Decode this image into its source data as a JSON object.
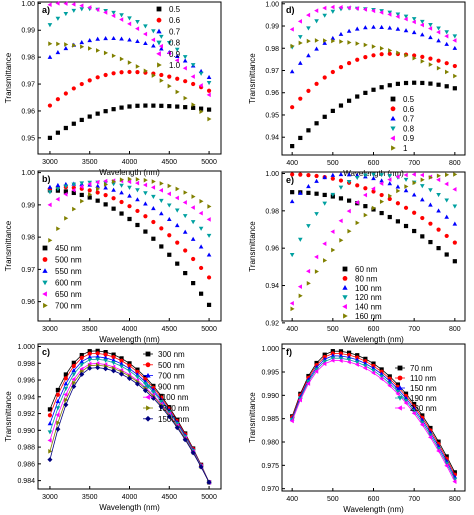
{
  "figure": {
    "panel_count": 6
  },
  "chart_data": [
    {
      "panel": "a)",
      "type": "scatter",
      "xlabel": "Wavelength (nm)",
      "ylabel": "Transmittance",
      "xlim": [
        2850,
        5150
      ],
      "ylim": [
        0.944,
        1.0005
      ],
      "xticks": [
        3000,
        3500,
        4000,
        4500,
        5000
      ],
      "yticks": [
        0.95,
        0.96,
        0.97,
        0.98,
        0.99,
        1.0
      ],
      "ytick_labels": [
        "0.95",
        "0.96",
        "0.97",
        "0.98",
        "0.99",
        "1.00"
      ],
      "legend": "right",
      "x": [
        3000,
        3100,
        3200,
        3300,
        3400,
        3500,
        3600,
        3700,
        3800,
        3900,
        4000,
        4100,
        4200,
        4300,
        4400,
        4500,
        4600,
        4700,
        4800,
        4900,
        5000
      ],
      "series": [
        {
          "name": "0.5",
          "color": "#000000",
          "marker": "square",
          "peak_x": 4200,
          "peak_y": 0.962,
          "start_y": 0.95,
          "end_y": 0.9605
        },
        {
          "name": "0.6",
          "color": "#ff0000",
          "marker": "circle",
          "peak_x": 4000,
          "peak_y": 0.9745,
          "start_y": 0.962,
          "end_y": 0.9675
        },
        {
          "name": "0.7",
          "color": "#0000ff",
          "marker": "triangle-up",
          "peak_x": 3750,
          "peak_y": 0.987,
          "start_y": 0.98,
          "end_y": 0.9725
        },
        {
          "name": "0.8",
          "color": "#00a0a0",
          "marker": "triangle-down",
          "peak_x": 3450,
          "peak_y": 0.998,
          "start_y": 0.992,
          "end_y": 0.9705
        },
        {
          "name": "0.9",
          "color": "#ff00ff",
          "marker": "triangle-left",
          "peak_x": 3100,
          "peak_y": 1.0,
          "start_y": 0.9995,
          "end_y": 0.966
        },
        {
          "name": "1.0",
          "color": "#808000",
          "marker": "triangle-right",
          "peak_x": 3000,
          "peak_y": 0.985,
          "start_y": 0.985,
          "end_y": 0.957
        }
      ]
    },
    {
      "panel": "b)",
      "type": "scatter",
      "xlabel": "Wavelength (nm)",
      "ylabel": "Transmittance",
      "xlim": [
        2850,
        5150
      ],
      "ylim": [
        0.954,
        1.0005
      ],
      "xticks": [
        3000,
        3500,
        4000,
        4500,
        5000
      ],
      "yticks": [
        0.96,
        0.97,
        0.98,
        0.99,
        1.0
      ],
      "ytick_labels": [
        "0.96",
        "0.97",
        "0.98",
        "0.99",
        "1.00"
      ],
      "legend": "lower-left",
      "x": [
        3000,
        3100,
        3200,
        3300,
        3400,
        3500,
        3600,
        3700,
        3800,
        3900,
        4000,
        4100,
        4200,
        4300,
        4400,
        4500,
        4600,
        4700,
        4800,
        4900,
        5000
      ],
      "series": [
        {
          "name": "450 nm",
          "color": "#000000",
          "marker": "square",
          "peak_x": 3000,
          "peak_y": 0.9945,
          "start_y": 0.9945,
          "end_y": 0.959
        },
        {
          "name": "500 nm",
          "color": "#ff0000",
          "marker": "circle",
          "peak_x": 3150,
          "peak_y": 0.9955,
          "start_y": 0.995,
          "end_y": 0.9675
        },
        {
          "name": "550 nm",
          "color": "#0000ff",
          "marker": "triangle-up",
          "peak_x": 3300,
          "peak_y": 0.9965,
          "start_y": 0.9955,
          "end_y": 0.9745
        },
        {
          "name": "600 nm",
          "color": "#00a0a0",
          "marker": "triangle-down",
          "peak_x": 3550,
          "peak_y": 0.997,
          "start_y": 0.994,
          "end_y": 0.9805
        },
        {
          "name": "650 nm",
          "color": "#ff00ff",
          "marker": "triangle-left",
          "peak_x": 3800,
          "peak_y": 0.9975,
          "start_y": 0.99,
          "end_y": 0.9855
        },
        {
          "name": "700 nm",
          "color": "#808000",
          "marker": "triangle-right",
          "peak_x": 4000,
          "peak_y": 0.998,
          "start_y": 0.979,
          "end_y": 0.9895
        }
      ]
    },
    {
      "panel": "c)",
      "type": "line",
      "xlabel": "Wavelength (nm)",
      "ylabel": "Transmittance",
      "xlim": [
        2850,
        5150
      ],
      "ylim": [
        0.983,
        1.0003
      ],
      "xticks": [
        3000,
        3500,
        4000,
        4500,
        5000
      ],
      "yticks": [
        0.984,
        0.986,
        0.988,
        0.99,
        0.992,
        0.994,
        0.996,
        0.998,
        1.0
      ],
      "ytick_labels": [
        "0.984",
        "0.986",
        "0.988",
        "0.990",
        "0.992",
        "0.994",
        "0.996",
        "0.998",
        "1.000"
      ],
      "legend": "top-right",
      "x": [
        3000,
        3100,
        3200,
        3300,
        3400,
        3500,
        3600,
        3700,
        3800,
        3900,
        4000,
        4100,
        4200,
        4300,
        4400,
        4500,
        4600,
        4700,
        4800,
        4900,
        5000
      ],
      "series": [
        {
          "name": "300 nm",
          "color": "#000000",
          "marker": "square",
          "peak_x": 3550,
          "peak_y": 0.9995,
          "start_y": 0.9925,
          "end_y": 0.9838
        },
        {
          "name": "500 nm",
          "color": "#ff0000",
          "marker": "circle",
          "peak_x": 3550,
          "peak_y": 0.9992,
          "start_y": 0.9918,
          "end_y": 0.9838
        },
        {
          "name": "700 nm",
          "color": "#0000ff",
          "marker": "triangle-up",
          "peak_x": 3550,
          "peak_y": 0.9988,
          "start_y": 0.9908,
          "end_y": 0.9838
        },
        {
          "name": "900 nm",
          "color": "#00a0a0",
          "marker": "triangle-down",
          "peak_x": 3550,
          "peak_y": 0.9985,
          "start_y": 0.9898,
          "end_y": 0.9838
        },
        {
          "name": "1100 nm",
          "color": "#ff00ff",
          "marker": "triangle-left",
          "peak_x": 3550,
          "peak_y": 0.998,
          "start_y": 0.9888,
          "end_y": 0.9838
        },
        {
          "name": "1300 nm",
          "color": "#808000",
          "marker": "triangle-right",
          "peak_x": 3550,
          "peak_y": 0.9978,
          "start_y": 0.9875,
          "end_y": 0.9838
        },
        {
          "name": "1500 nm",
          "color": "#000080",
          "marker": "diamond",
          "peak_x": 3550,
          "peak_y": 0.9975,
          "start_y": 0.9865,
          "end_y": 0.9838
        }
      ]
    },
    {
      "panel": "d)",
      "type": "scatter",
      "xlabel": "Wavelength (nm)",
      "ylabel": "Transmittance",
      "xlim": [
        375,
        825
      ],
      "ylim": [
        0.932,
        1.0008
      ],
      "xticks": [
        400,
        500,
        600,
        700,
        800
      ],
      "yticks": [
        0.94,
        0.95,
        0.96,
        0.97,
        0.98,
        0.99,
        1.0
      ],
      "ytick_labels": [
        "0.94",
        "0.95",
        "0.96",
        "0.97",
        "0.98",
        "0.99",
        "1.00"
      ],
      "legend": "lower-right",
      "x": [
        400,
        420,
        440,
        460,
        480,
        500,
        520,
        540,
        560,
        580,
        600,
        620,
        640,
        660,
        680,
        700,
        720,
        740,
        760,
        780,
        800
      ],
      "series": [
        {
          "name": "0.5",
          "color": "#000000",
          "marker": "square",
          "peak_x": 700,
          "peak_y": 0.9645,
          "start_y": 0.936,
          "end_y": 0.962
        },
        {
          "name": "0.6",
          "color": "#ff0000",
          "marker": "circle",
          "peak_x": 640,
          "peak_y": 0.9775,
          "start_y": 0.9535,
          "end_y": 0.972
        },
        {
          "name": "0.7",
          "color": "#0000ff",
          "marker": "triangle-up",
          "peak_x": 600,
          "peak_y": 0.9895,
          "start_y": 0.9695,
          "end_y": 0.98
        },
        {
          "name": "0.8",
          "color": "#00a0a0",
          "marker": "triangle-down",
          "peak_x": 540,
          "peak_y": 0.998,
          "start_y": 0.9805,
          "end_y": 0.9855
        },
        {
          "name": "0.9",
          "color": "#ff00ff",
          "marker": "triangle-left",
          "peak_x": 500,
          "peak_y": 0.9985,
          "start_y": 0.9885,
          "end_y": 0.9835
        },
        {
          "name": "1",
          "color": "#808000",
          "marker": "triangle-right",
          "peak_x": 460,
          "peak_y": 0.9835,
          "start_y": 0.981,
          "end_y": 0.9675
        }
      ]
    },
    {
      "panel": "e)",
      "type": "scatter",
      "xlabel": "Wavelength (nm)",
      "ylabel": "Transmittance",
      "xlim": [
        375,
        825
      ],
      "ylim": [
        0.921,
        1.0008
      ],
      "xticks": [
        400,
        500,
        600,
        700,
        800
      ],
      "yticks": [
        0.92,
        0.94,
        0.96,
        0.98,
        1.0
      ],
      "ytick_labels": [
        "0.92",
        "0.94",
        "0.96",
        "0.98",
        "1.00"
      ],
      "legend": "lower-center",
      "x": [
        400,
        420,
        440,
        460,
        480,
        500,
        520,
        540,
        560,
        580,
        600,
        620,
        640,
        660,
        680,
        700,
        720,
        740,
        760,
        780,
        800
      ],
      "series": [
        {
          "name": "60 nm",
          "color": "#000000",
          "marker": "square",
          "peak_x": 400,
          "peak_y": 0.99,
          "start_y": 0.99,
          "end_y": 0.953
        },
        {
          "name": "80 nm",
          "color": "#ff0000",
          "marker": "circle",
          "peak_x": 400,
          "peak_y": 0.9995,
          "start_y": 0.9995,
          "end_y": 0.963
        },
        {
          "name": "100 nm",
          "color": "#0000ff",
          "marker": "triangle-up",
          "peak_x": 520,
          "peak_y": 0.9995,
          "start_y": 0.985,
          "end_y": 0.973
        },
        {
          "name": "120 nm",
          "color": "#00a0a0",
          "marker": "triangle-down",
          "peak_x": 600,
          "peak_y": 0.9995,
          "start_y": 0.9565,
          "end_y": 0.9825
        },
        {
          "name": "140 nm",
          "color": "#ff00ff",
          "marker": "triangle-left",
          "peak_x": 700,
          "peak_y": 0.9995,
          "start_y": 0.9305,
          "end_y": 0.9915
        },
        {
          "name": "160 nm",
          "color": "#808000",
          "marker": "triangle-right",
          "peak_x": 800,
          "peak_y": 0.9995,
          "start_y": 0.9275,
          "end_y": 0.9995
        }
      ]
    },
    {
      "panel": "f)",
      "type": "line",
      "xlabel": "Wavelength (nm)",
      "ylabel": "Transmittance",
      "xlim": [
        375,
        825
      ],
      "ylim": [
        0.9695,
        1.001
      ],
      "xticks": [
        400,
        500,
        600,
        700,
        800
      ],
      "yticks": [
        0.97,
        0.975,
        0.98,
        0.985,
        0.99,
        0.995,
        1.0
      ],
      "ytick_labels": [
        "0.970",
        "0.975",
        "0.980",
        "0.985",
        "0.990",
        "0.995",
        "1.000"
      ],
      "legend": "top-right",
      "x": [
        400,
        420,
        440,
        460,
        480,
        500,
        520,
        540,
        560,
        580,
        600,
        620,
        640,
        660,
        680,
        700,
        720,
        740,
        760,
        780,
        800
      ],
      "series": [
        {
          "name": "70 nm",
          "color": "#000000",
          "marker": "square",
          "peak_x": 505,
          "peak_y": 0.9995,
          "start_y": 0.9855,
          "end_y": 0.9735
        },
        {
          "name": "110 nm",
          "color": "#ff0000",
          "marker": "circle",
          "peak_x": 505,
          "peak_y": 0.999,
          "start_y": 0.9853,
          "end_y": 0.973
        },
        {
          "name": "150 nm",
          "color": "#0000ff",
          "marker": "triangle-up",
          "peak_x": 505,
          "peak_y": 0.9985,
          "start_y": 0.985,
          "end_y": 0.9725
        },
        {
          "name": "190 nm",
          "color": "#00a0a0",
          "marker": "triangle-down",
          "peak_x": 505,
          "peak_y": 0.998,
          "start_y": 0.9848,
          "end_y": 0.972
        },
        {
          "name": "230 nm",
          "color": "#ff00ff",
          "marker": "triangle-left",
          "peak_x": 505,
          "peak_y": 0.9975,
          "start_y": 0.9845,
          "end_y": 0.9715
        }
      ]
    }
  ]
}
